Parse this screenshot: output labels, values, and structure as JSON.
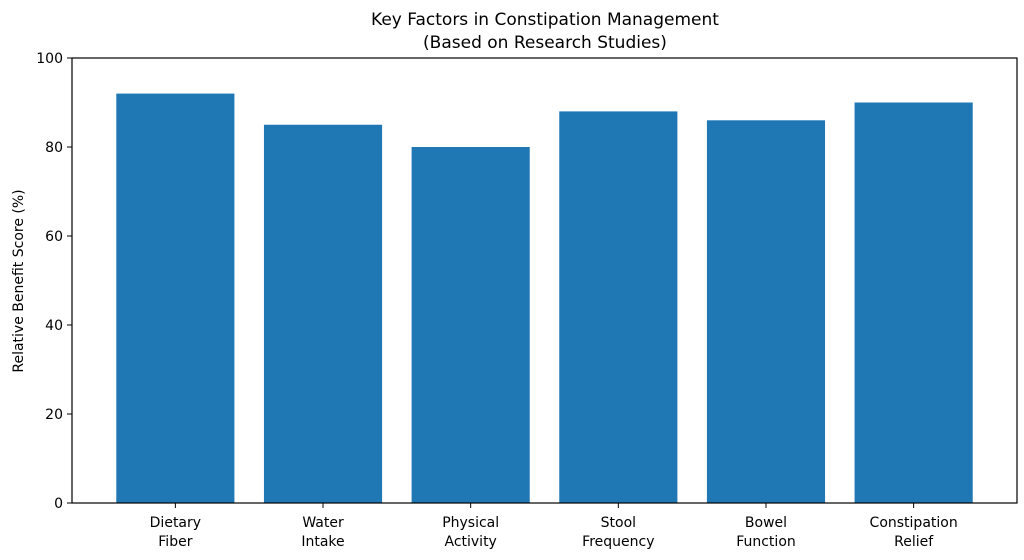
{
  "chart_data": {
    "type": "bar",
    "title": [
      "Key Factors in Constipation Management",
      "(Based on Research Studies)"
    ],
    "xlabel": "",
    "ylabel": "Relative Benefit Score (%)",
    "categories": [
      [
        "Dietary",
        "Fiber"
      ],
      [
        "Water",
        "Intake"
      ],
      [
        "Physical",
        "Activity"
      ],
      [
        "Stool",
        "Frequency"
      ],
      [
        "Bowel",
        "Function"
      ],
      [
        "Constipation",
        "Relief"
      ]
    ],
    "values": [
      92,
      85,
      80,
      88,
      86,
      90
    ],
    "ylim": [
      0,
      100
    ],
    "yticks": [
      0,
      20,
      40,
      60,
      80,
      100
    ],
    "grid": false,
    "legend": "none",
    "bar_color": "#1f77b4"
  }
}
